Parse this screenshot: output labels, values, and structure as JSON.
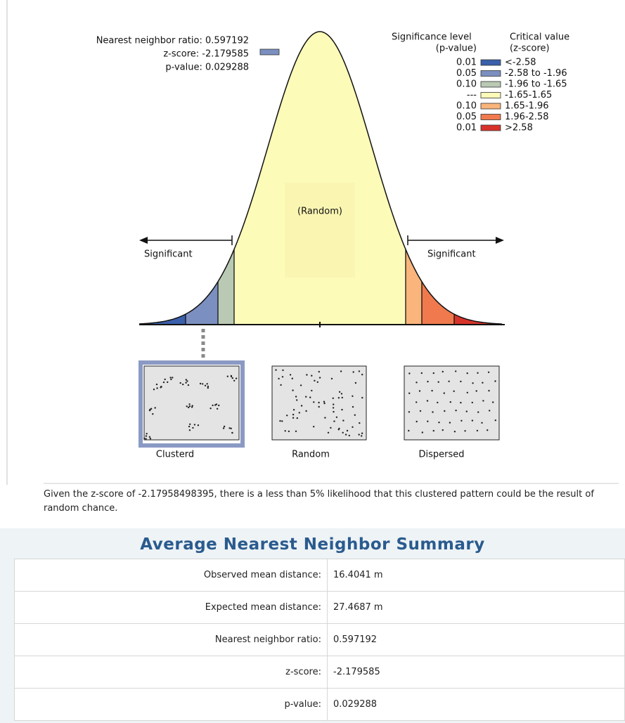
{
  "annotation": {
    "ratio": "Nearest neighbor ratio: 0.597192",
    "z_score": "z-score: -2.179585",
    "p_value": "p-value: 0.029288"
  },
  "legend": {
    "significance_title": "Significance level",
    "significance_unit": "(p-value)",
    "critical_title": "Critical value",
    "critical_unit": "(z-score)",
    "rows": [
      {
        "p": "0.01",
        "z": "<-2.58",
        "color": "#3a5fab"
      },
      {
        "p": "0.05",
        "z": "-2.58 to -1.96",
        "color": "#7b8fc0"
      },
      {
        "p": "0.10",
        "z": "-1.96 to -1.65",
        "color": "#b9c9b3"
      },
      {
        "p": "---",
        "z": "-1.65-1.65",
        "color": "#fdfbb8"
      },
      {
        "p": "0.10",
        "z": "1.65-1.96",
        "color": "#f9b57b"
      },
      {
        "p": "0.05",
        "z": "1.96-2.58",
        "color": "#f07a4e"
      },
      {
        "p": "0.01",
        "z": ">2.58",
        "color": "#d7332b"
      }
    ]
  },
  "curve": {
    "center_label": "(Random)",
    "left_label": "Significant",
    "right_label": "Significant"
  },
  "patterns": [
    "Clusterd",
    "Random",
    "Dispersed"
  ],
  "description": "Given the z-score of -2.17958498395, there is a less than 5% likelihood that this clustered pattern could be the result of random chance.",
  "summary": {
    "title": "Average Nearest Neighbor Summary",
    "rows": [
      [
        "Observed mean distance:",
        "16.4041 m"
      ],
      [
        "Expected mean distance:",
        "27.4687 m"
      ],
      [
        "Nearest neighbor ratio:",
        "0.597192"
      ],
      [
        "z-score:",
        "-2.179585"
      ],
      [
        "p-value:",
        "0.029288"
      ]
    ]
  }
}
